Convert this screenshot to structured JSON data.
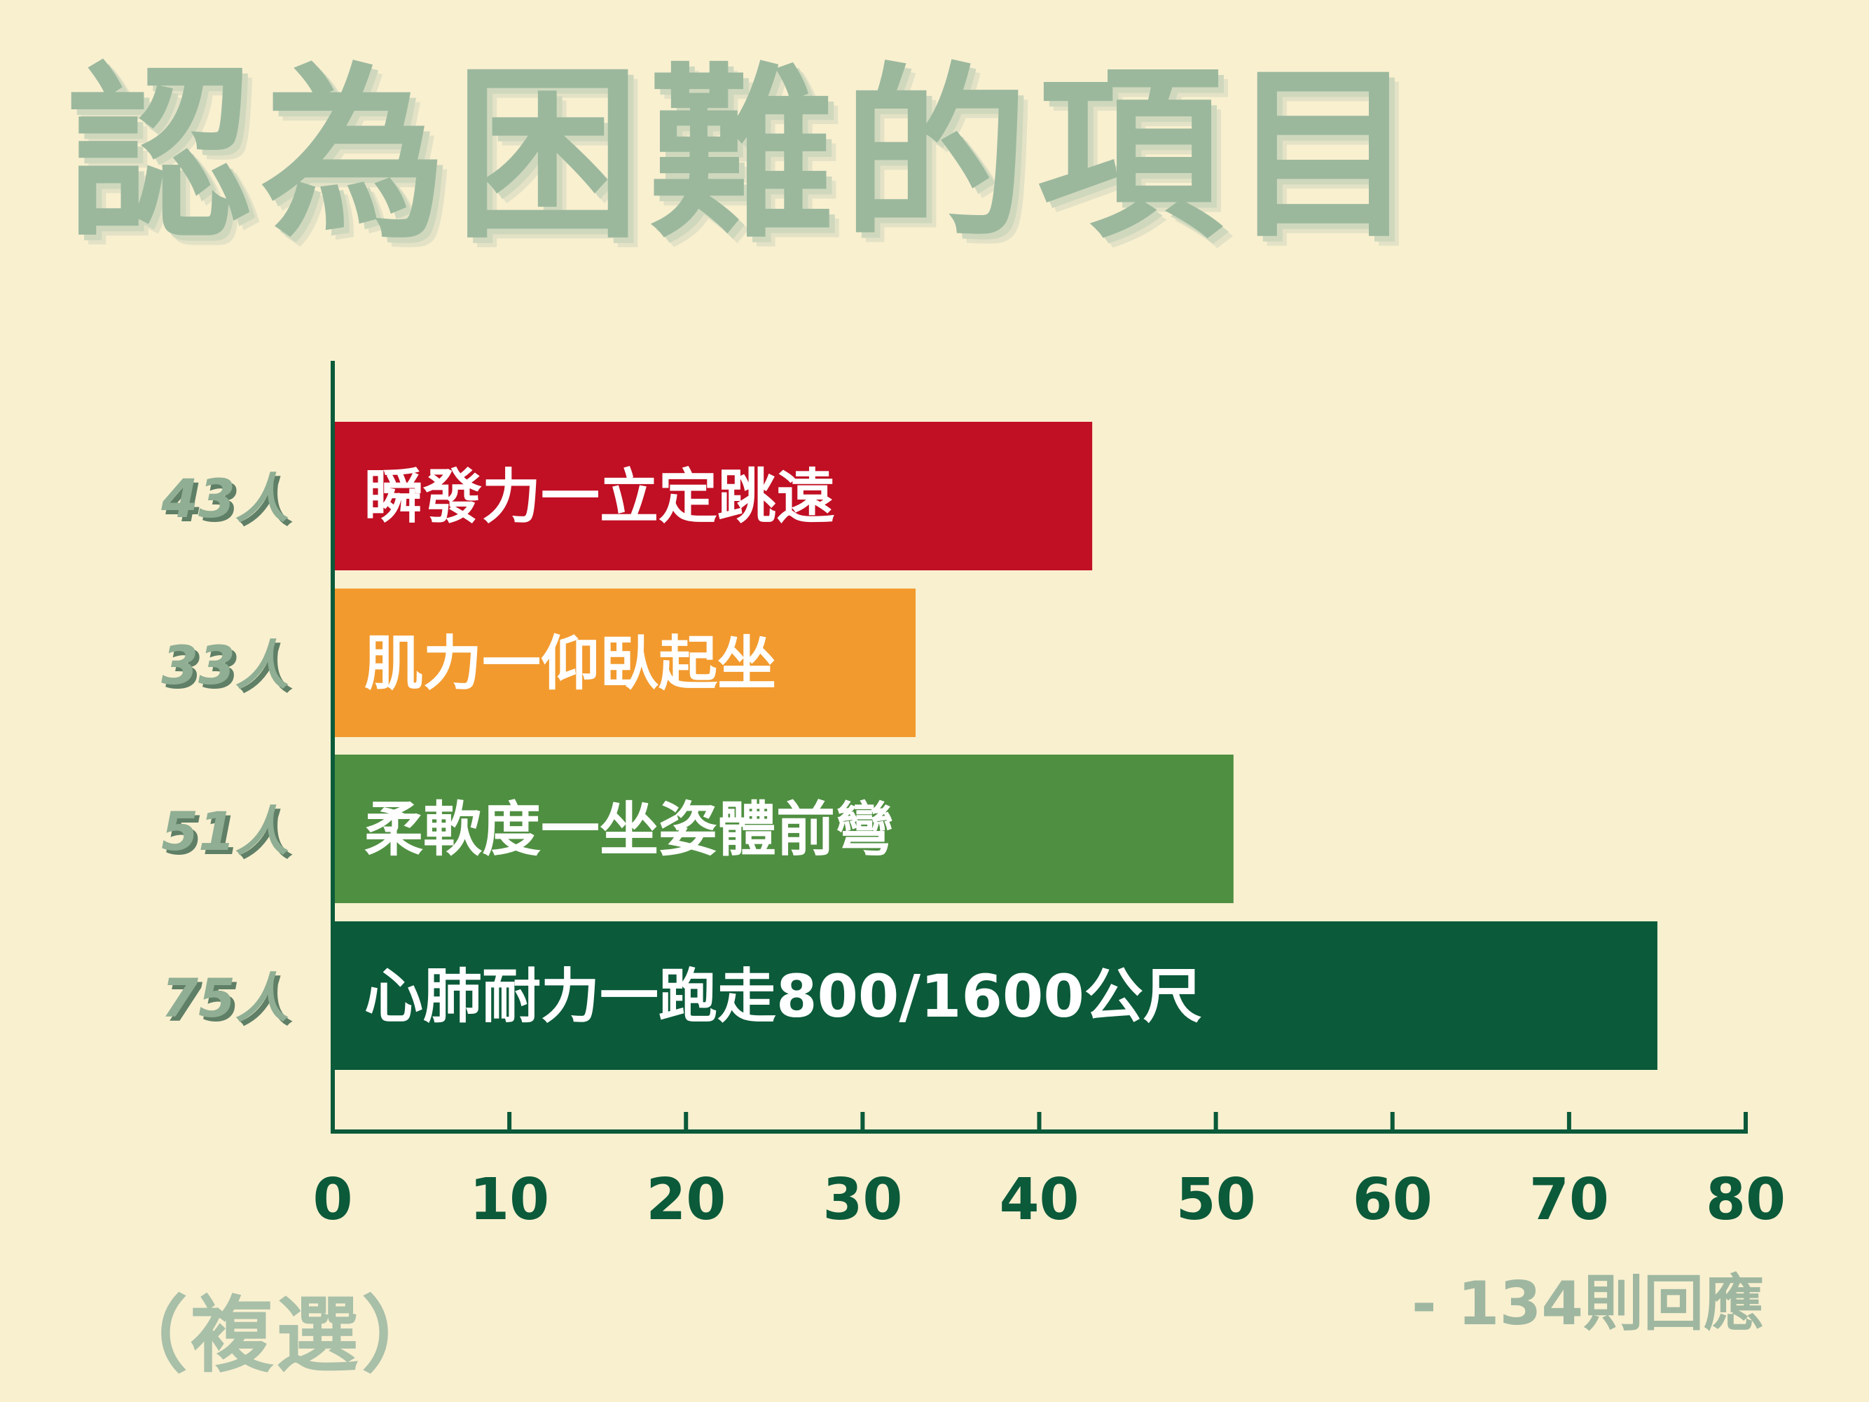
{
  "header": {
    "title": "認為困難的項目"
  },
  "footer": {
    "note_left": "（複選）",
    "note_right": "- 134則回應"
  },
  "chart_data": {
    "type": "bar",
    "orientation": "horizontal",
    "categories": [
      "瞬發力一立定跳遠",
      "肌力一仰臥起坐",
      "柔軟度一坐姿體前彎",
      "心肺耐力一跑走800/1600公尺"
    ],
    "values": [
      43,
      33,
      51,
      75
    ],
    "value_labels": [
      "43人",
      "33人",
      "51人",
      "75人"
    ],
    "colors": [
      "#c10f23",
      "#f29a2e",
      "#4f8f41",
      "#0b5a3a"
    ],
    "xlim": [
      0,
      80
    ],
    "ticks": [
      0,
      10,
      20,
      30,
      40,
      50,
      60,
      70,
      80
    ],
    "grid": false
  }
}
